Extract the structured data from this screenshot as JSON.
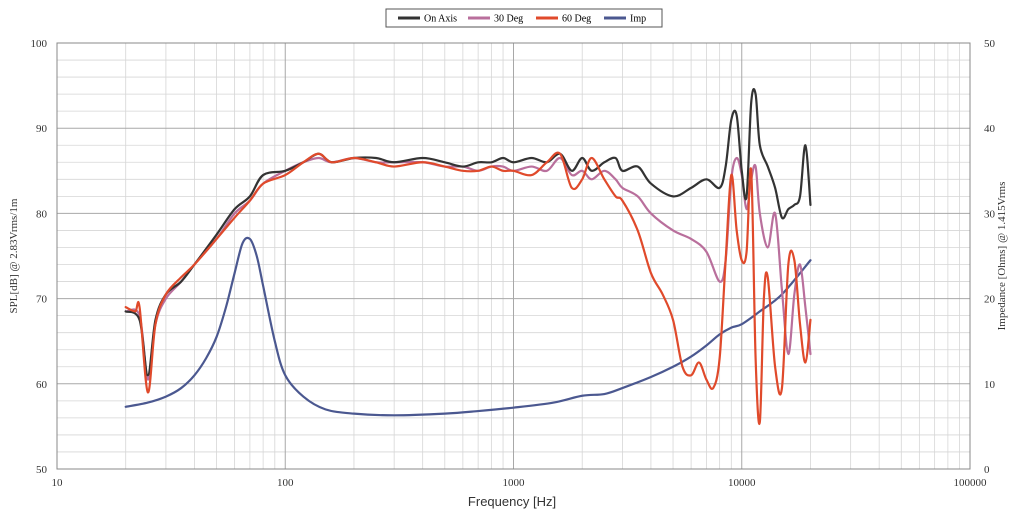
{
  "chart_data": {
    "type": "line",
    "xlabel": "Frequency [Hz]",
    "ylabel": "SPL[dB] @ 2.83Vrms/1m",
    "y2label": "Impedance [Ohms] @ 1.415Vrms",
    "x_scale": "log",
    "xlim": [
      10,
      100000
    ],
    "ylim": [
      50,
      100
    ],
    "y2lim": [
      0,
      50
    ],
    "grid": true,
    "legend_position": "top-center",
    "x_ticks": [
      "10",
      "100",
      "1000",
      "10000",
      "100000"
    ],
    "y_ticks": [
      "50",
      "60",
      "70",
      "80",
      "90",
      "100"
    ],
    "y2_ticks": [
      "0",
      "10",
      "20",
      "30",
      "40",
      "50"
    ],
    "series": [
      {
        "name": "On Axis",
        "color": "#333333",
        "axis": "left",
        "x": [
          20,
          23,
          25,
          27,
          30,
          35,
          40,
          50,
          60,
          70,
          80,
          100,
          120,
          140,
          160,
          200,
          250,
          300,
          400,
          500,
          600,
          700,
          800,
          900,
          1000,
          1200,
          1400,
          1600,
          1800,
          2000,
          2200,
          2500,
          2800,
          3000,
          3500,
          4000,
          5000,
          6000,
          7000,
          8000,
          8500,
          9000,
          9500,
          10000,
          10500,
          11000,
          11500,
          12000,
          13000,
          14000,
          15000,
          16000,
          17000,
          18000,
          19000,
          20000
        ],
        "y": [
          68.5,
          67.5,
          61.0,
          67.5,
          70.5,
          72.0,
          74.0,
          77.5,
          80.5,
          82.0,
          84.5,
          85.0,
          86.0,
          87.0,
          86.0,
          86.5,
          86.5,
          86.0,
          86.5,
          86.0,
          85.5,
          86.0,
          86.0,
          86.5,
          86.0,
          86.5,
          86.0,
          87.0,
          85.0,
          86.5,
          85.0,
          86.0,
          86.5,
          85.0,
          85.5,
          83.5,
          82.0,
          83.0,
          84.0,
          83.0,
          85.5,
          91.0,
          91.5,
          85.0,
          82.0,
          93.0,
          94.0,
          88.0,
          85.5,
          83.0,
          79.5,
          80.5,
          81.0,
          82.0,
          88.0,
          81.0
        ]
      },
      {
        "name": "30 Deg",
        "color": "#b96f9c",
        "axis": "left",
        "x": [
          20,
          23,
          25,
          27,
          30,
          35,
          40,
          50,
          60,
          70,
          80,
          100,
          120,
          140,
          160,
          200,
          250,
          300,
          400,
          500,
          600,
          700,
          800,
          900,
          1000,
          1200,
          1400,
          1600,
          1800,
          2000,
          2200,
          2500,
          2800,
          3000,
          3500,
          4000,
          5000,
          6000,
          7000,
          8000,
          8500,
          9000,
          9500,
          10000,
          10500,
          11000,
          11500,
          12000,
          13000,
          14000,
          15000,
          16000,
          17000,
          18000,
          19000,
          20000
        ],
        "y": [
          68.5,
          68.0,
          60.5,
          67.0,
          70.0,
          72.0,
          74.0,
          77.0,
          80.0,
          81.5,
          83.5,
          85.0,
          86.0,
          86.5,
          86.0,
          86.5,
          86.0,
          86.0,
          86.0,
          85.5,
          85.5,
          85.0,
          85.5,
          85.5,
          85.0,
          85.5,
          85.0,
          86.5,
          84.5,
          85.0,
          84.0,
          85.0,
          84.0,
          83.0,
          82.0,
          80.0,
          78.0,
          77.0,
          75.5,
          72.0,
          74.5,
          84.0,
          86.5,
          84.5,
          80.5,
          84.0,
          85.5,
          80.0,
          76.0,
          80.0,
          71.0,
          63.5,
          70.5,
          74.0,
          69.0,
          63.5
        ]
      },
      {
        "name": "60 Deg",
        "color": "#e04a2b",
        "axis": "left",
        "x": [
          20,
          22,
          23,
          25,
          27,
          30,
          35,
          40,
          50,
          60,
          70,
          80,
          100,
          120,
          140,
          160,
          200,
          250,
          300,
          400,
          500,
          600,
          700,
          800,
          900,
          1000,
          1200,
          1400,
          1600,
          1800,
          2000,
          2200,
          2500,
          2800,
          3000,
          3500,
          4000,
          4500,
          5000,
          5500,
          6000,
          6500,
          7000,
          7500,
          8000,
          8500,
          9000,
          9500,
          10000,
          10500,
          11000,
          11500,
          12000,
          12500,
          13000,
          14000,
          15000,
          16000,
          17000,
          18000,
          19000,
          20000
        ],
        "y": [
          69.0,
          68.5,
          69.0,
          59.0,
          67.0,
          70.5,
          72.5,
          74.0,
          77.0,
          79.5,
          81.5,
          83.5,
          84.5,
          86.0,
          87.0,
          86.0,
          86.5,
          86.0,
          85.5,
          86.0,
          85.5,
          85.0,
          85.0,
          85.5,
          85.0,
          85.0,
          84.5,
          86.0,
          87.0,
          83.0,
          84.0,
          86.5,
          84.0,
          82.0,
          81.5,
          78.0,
          73.0,
          70.5,
          67.5,
          62.0,
          61.0,
          62.5,
          60.5,
          59.5,
          63.0,
          74.5,
          84.5,
          78.0,
          74.5,
          75.5,
          85.0,
          63.0,
          55.5,
          70.0,
          72.5,
          62.0,
          59.5,
          74.0,
          74.5,
          67.0,
          62.5,
          67.5
        ]
      },
      {
        "name": "Imp",
        "color": "#4b5890",
        "axis": "right",
        "x": [
          20,
          25,
          30,
          35,
          40,
          45,
          50,
          55,
          60,
          65,
          70,
          75,
          80,
          90,
          100,
          120,
          150,
          200,
          300,
          500,
          700,
          1000,
          1500,
          2000,
          2500,
          3000,
          4000,
          5000,
          6000,
          7000,
          8000,
          9000,
          10000,
          12000,
          15000,
          20000
        ],
        "y": [
          7.3,
          7.8,
          8.5,
          9.5,
          11.0,
          13.0,
          15.5,
          19.0,
          23.0,
          26.5,
          27.0,
          25.0,
          21.5,
          15.0,
          11.0,
          8.5,
          7.0,
          6.5,
          6.3,
          6.5,
          6.8,
          7.2,
          7.8,
          8.6,
          8.8,
          9.5,
          10.8,
          12.0,
          13.2,
          14.5,
          15.8,
          16.6,
          17.0,
          18.5,
          20.5,
          24.5
        ]
      }
    ]
  }
}
